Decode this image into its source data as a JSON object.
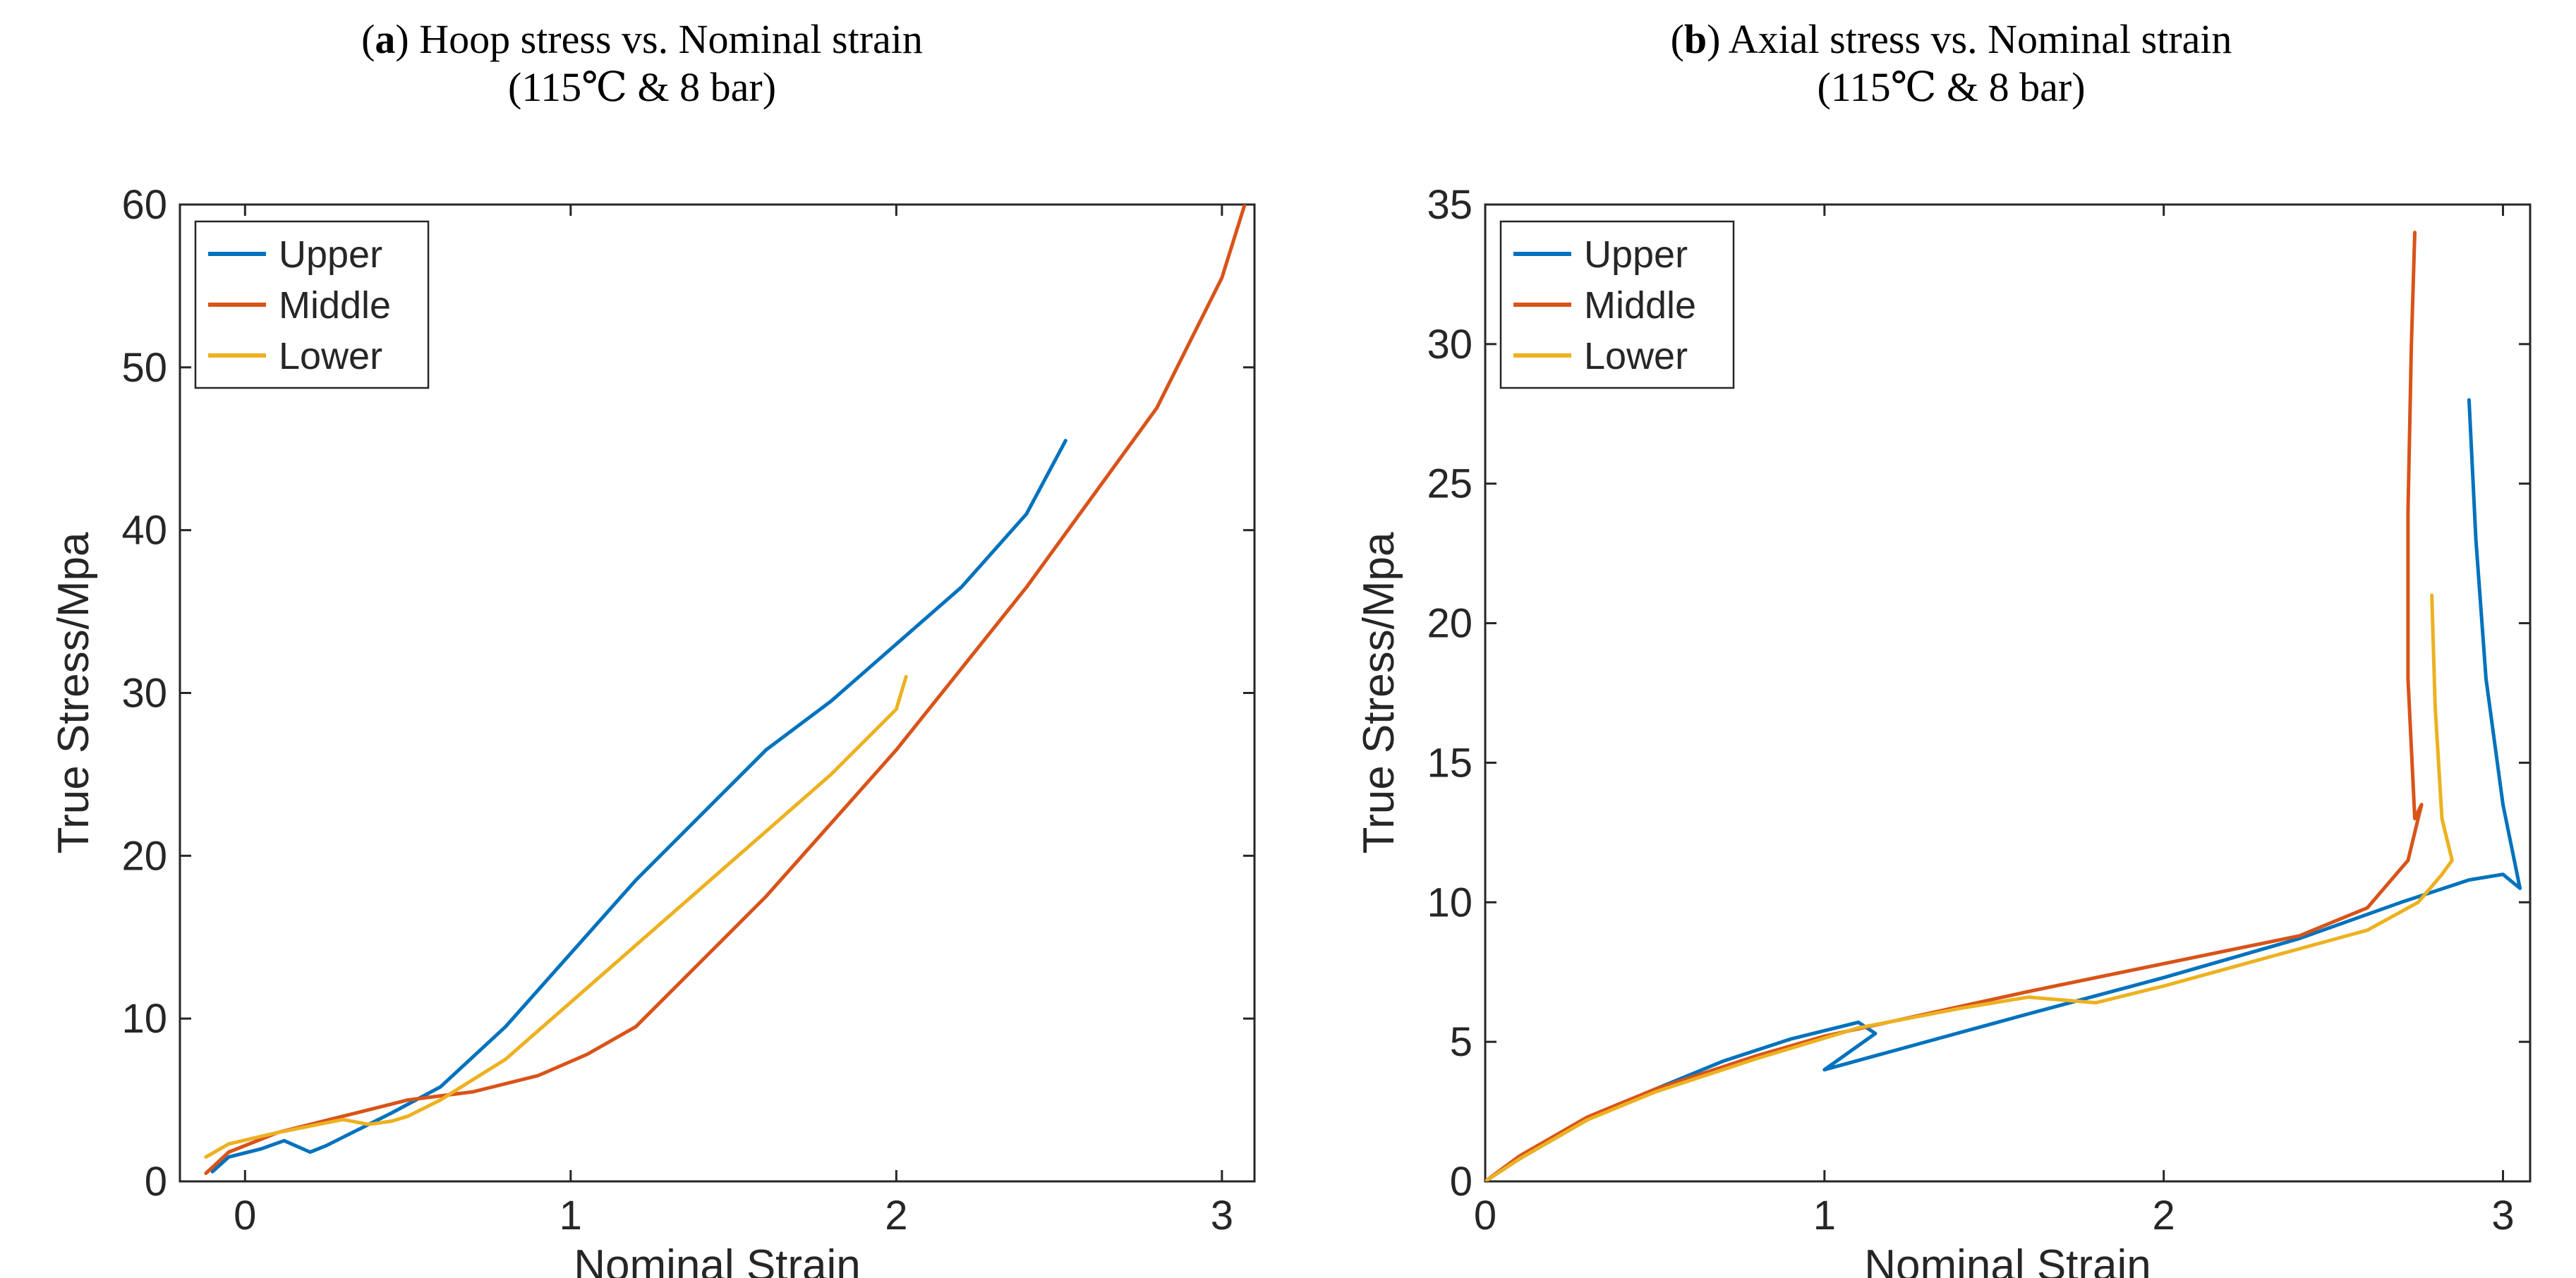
{
  "colors": {
    "upper": "#0072BD",
    "middle": "#D95319",
    "lower": "#EDB120"
  },
  "chart_data": [
    {
      "type": "line",
      "title_tag": "a",
      "title_text": "Hoop stress vs. Nominal strain",
      "subtitle": "(115℃ & 8 bar)",
      "xlabel": "Nominal Strain",
      "ylabel": "True Stress/Mpa",
      "xlim": [
        -0.2,
        3.1
      ],
      "ylim": [
        0,
        60
      ],
      "xticks": [
        "0",
        "1",
        "2",
        "3"
      ],
      "yticks": [
        "0",
        "10",
        "20",
        "30",
        "40",
        "50",
        "60"
      ],
      "legend_position": "top-left",
      "series": [
        {
          "name": "Upper",
          "color": "#0072BD",
          "x": [
            -0.1,
            -0.05,
            0.05,
            0.12,
            0.2,
            0.25,
            0.35,
            0.45,
            0.6,
            0.8,
            1.0,
            1.2,
            1.4,
            1.6,
            1.8,
            2.0,
            2.2,
            2.4,
            2.52
          ],
          "y": [
            0.6,
            1.5,
            2.0,
            2.5,
            1.8,
            2.2,
            3.2,
            4.2,
            5.8,
            9.5,
            14.0,
            18.5,
            22.5,
            26.5,
            29.5,
            33.0,
            36.5,
            41.0,
            45.5
          ]
        },
        {
          "name": "Middle",
          "color": "#D95319",
          "x": [
            -0.12,
            -0.05,
            0.1,
            0.3,
            0.5,
            0.7,
            0.9,
            1.05,
            1.2,
            1.4,
            1.6,
            1.8,
            2.0,
            2.2,
            2.4,
            2.6,
            2.8,
            3.0,
            3.07
          ],
          "y": [
            0.5,
            1.8,
            3.0,
            4.0,
            5.0,
            5.5,
            6.5,
            7.8,
            9.5,
            13.5,
            17.5,
            22.0,
            26.5,
            31.5,
            36.5,
            42.0,
            47.5,
            55.5,
            60.0
          ]
        },
        {
          "name": "Lower",
          "color": "#EDB120",
          "x": [
            -0.12,
            -0.05,
            0.1,
            0.3,
            0.38,
            0.45,
            0.5,
            0.6,
            0.8,
            1.0,
            1.2,
            1.4,
            1.6,
            1.8,
            2.0,
            2.03
          ],
          "y": [
            1.5,
            2.3,
            3.0,
            3.8,
            3.5,
            3.7,
            4.0,
            5.0,
            7.5,
            11.0,
            14.5,
            18.0,
            21.5,
            25.0,
            29.0,
            31.0
          ]
        }
      ]
    },
    {
      "type": "line",
      "title_tag": "b",
      "title_text": "Axial stress vs. Nominal strain",
      "subtitle": "(115℃ & 8 bar)",
      "xlabel": "Nominal Strain",
      "ylabel": "True Stress/Mpa",
      "xlim": [
        0,
        3.08
      ],
      "ylim": [
        0,
        35
      ],
      "xticks": [
        "0",
        "1",
        "2",
        "3"
      ],
      "yticks": [
        "0",
        "5",
        "10",
        "15",
        "20",
        "25",
        "30",
        "35"
      ],
      "legend_position": "top-left",
      "series": [
        {
          "name": "Upper",
          "color": "#0072BD",
          "x": [
            0.0,
            0.1,
            0.3,
            0.5,
            0.7,
            0.9,
            1.1,
            1.15,
            1.0,
            1.3,
            1.6,
            2.0,
            2.4,
            2.7,
            2.9,
            3.0,
            3.05,
            3.0,
            2.95,
            2.92,
            2.9
          ],
          "y": [
            0.0,
            0.8,
            2.2,
            3.3,
            4.3,
            5.1,
            5.7,
            5.3,
            4.0,
            5.0,
            6.0,
            7.3,
            8.7,
            10.0,
            10.8,
            11.0,
            10.5,
            13.5,
            18.0,
            23.0,
            28.0
          ]
        },
        {
          "name": "Middle",
          "color": "#D95319",
          "x": [
            0.0,
            0.1,
            0.3,
            0.5,
            0.8,
            1.0,
            1.3,
            1.6,
            2.0,
            2.4,
            2.6,
            2.72,
            2.76,
            2.74,
            2.72,
            2.72,
            2.73,
            2.74
          ],
          "y": [
            0.0,
            0.9,
            2.3,
            3.3,
            4.5,
            5.2,
            6.0,
            6.8,
            7.8,
            8.8,
            9.8,
            11.5,
            13.5,
            13.0,
            18.0,
            24.0,
            30.0,
            34.0
          ]
        },
        {
          "name": "Lower",
          "color": "#EDB120",
          "x": [
            0.0,
            0.1,
            0.3,
            0.5,
            0.8,
            1.1,
            1.4,
            1.6,
            1.8,
            2.0,
            2.3,
            2.6,
            2.75,
            2.82,
            2.85,
            2.82,
            2.8,
            2.79
          ],
          "y": [
            0.0,
            0.8,
            2.2,
            3.2,
            4.4,
            5.5,
            6.2,
            6.6,
            6.4,
            7.0,
            8.0,
            9.0,
            10.0,
            11.0,
            11.5,
            13.0,
            17.0,
            21.0
          ]
        }
      ]
    }
  ]
}
